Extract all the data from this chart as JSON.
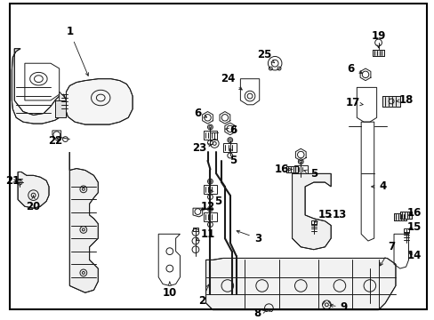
{
  "background_color": "#ffffff",
  "border_color": "#000000",
  "figsize": [
    4.89,
    3.6
  ],
  "dpi": 100,
  "line_color": "#1a1a1a",
  "line_width": 0.7,
  "label_fontsize": 8.5,
  "label_color": "#000000"
}
